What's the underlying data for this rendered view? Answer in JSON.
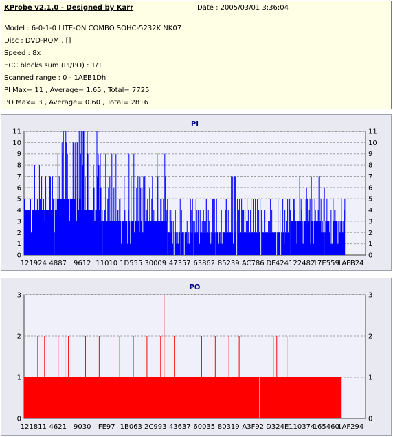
{
  "header": {
    "app_title": "KProbe v2.1.0 - Designed by Karr",
    "date": "Date : 2005/03/01 3:36:04",
    "lines": [
      "Model : 6-0-1-0 LITE-ON COMBO SOHC-5232K NK07",
      "Disc : DVD-ROM ,  []",
      "Speed : 8x",
      "ECC blocks sum (PI/PO) : 1/1",
      "Scanned range : 0 - 1AEB1Dh",
      "PI Max= 11 , Average= 1.65 , Total= 7725",
      "PO Max= 3 , Average= 0.60 , Total= 2816"
    ]
  },
  "charts": {
    "pi": {
      "type": "bar",
      "title": "PI",
      "color": "#0000ff",
      "ylim": [
        0,
        11
      ],
      "yticks": [
        0,
        1,
        2,
        3,
        4,
        5,
        6,
        7,
        8,
        9,
        10,
        11
      ],
      "xtick_labels": [
        "121924",
        "4887",
        "9612",
        "11010",
        "1D555",
        "30009",
        "47357",
        "63862",
        "85239",
        "AC786",
        "DF424",
        "122482",
        "17E559",
        "1AFB24"
      ],
      "segments": [
        {
          "range": [
            0.0,
            0.03
          ],
          "base": 4,
          "spikes": [
            5,
            7,
            6
          ]
        },
        {
          "range": [
            0.03,
            0.09
          ],
          "base": 4,
          "spikes": [
            6,
            7,
            5,
            8
          ]
        },
        {
          "range": [
            0.09,
            0.17
          ],
          "base": 5,
          "spikes": [
            8,
            9,
            11,
            10,
            9,
            7
          ]
        },
        {
          "range": [
            0.17,
            0.23
          ],
          "base": 4,
          "spikes": [
            7,
            8,
            11,
            9,
            6
          ]
        },
        {
          "range": [
            0.23,
            0.42
          ],
          "base": 3,
          "spikes": [
            4,
            5,
            6,
            7,
            9
          ]
        },
        {
          "range": [
            0.42,
            0.6
          ],
          "base": 2,
          "spikes": [
            3,
            4,
            5
          ]
        },
        {
          "range": [
            0.6,
            0.62
          ],
          "base": 2,
          "spikes": [
            7
          ]
        },
        {
          "range": [
            0.62,
            0.78
          ],
          "base": 2,
          "spikes": [
            3,
            4,
            5
          ]
        },
        {
          "range": [
            0.78,
            0.88
          ],
          "base": 3,
          "spikes": [
            4,
            5,
            6,
            7
          ]
        },
        {
          "range": [
            0.88,
            0.94
          ],
          "base": 3,
          "spikes": [
            4,
            5
          ]
        },
        {
          "range": [
            0.94,
            0.945
          ],
          "base": 0,
          "spikes": []
        }
      ]
    },
    "po": {
      "type": "bar",
      "title": "PO",
      "color": "#ff0000",
      "ylim": [
        0,
        3
      ],
      "yticks": [
        0,
        1,
        2,
        3
      ],
      "xtick_labels": [
        "121811",
        "4621",
        "9030",
        "FE97",
        "1B063",
        "2C993",
        "43637",
        "60035",
        "80319",
        "A3F92",
        "D324E",
        "110374",
        "165460",
        "1AF294"
      ],
      "base_range": [
        0.0,
        0.93
      ],
      "base_value": 1,
      "gap_at": 0.69,
      "spikes": [
        {
          "x": 0.04,
          "v": 2
        },
        {
          "x": 0.06,
          "v": 2
        },
        {
          "x": 0.1,
          "v": 2
        },
        {
          "x": 0.12,
          "v": 2
        },
        {
          "x": 0.13,
          "v": 2
        },
        {
          "x": 0.18,
          "v": 2
        },
        {
          "x": 0.22,
          "v": 2
        },
        {
          "x": 0.28,
          "v": 2
        },
        {
          "x": 0.32,
          "v": 2
        },
        {
          "x": 0.36,
          "v": 2
        },
        {
          "x": 0.4,
          "v": 2
        },
        {
          "x": 0.41,
          "v": 3
        },
        {
          "x": 0.44,
          "v": 2
        },
        {
          "x": 0.52,
          "v": 2
        },
        {
          "x": 0.56,
          "v": 2
        },
        {
          "x": 0.6,
          "v": 2
        },
        {
          "x": 0.63,
          "v": 2
        },
        {
          "x": 0.73,
          "v": 2
        },
        {
          "x": 0.74,
          "v": 2
        },
        {
          "x": 0.77,
          "v": 2
        }
      ]
    }
  }
}
